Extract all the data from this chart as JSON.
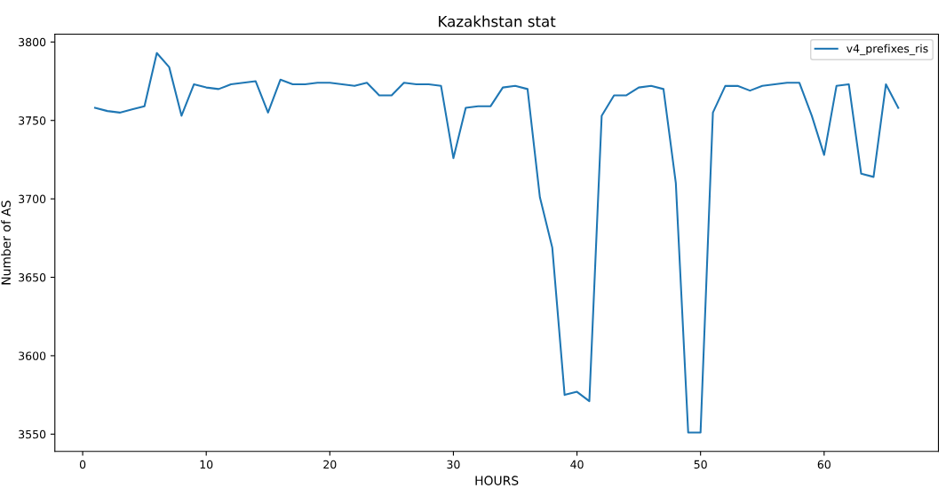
{
  "chart_data": {
    "type": "line",
    "title": "Kazakhstan stat",
    "xlabel": "HOURS",
    "ylabel": "Number of AS",
    "x": [
      1,
      2,
      3,
      4,
      5,
      6,
      7,
      8,
      9,
      10,
      11,
      12,
      13,
      14,
      15,
      16,
      17,
      18,
      19,
      20,
      21,
      22,
      23,
      24,
      25,
      26,
      27,
      28,
      29,
      30,
      31,
      32,
      33,
      34,
      35,
      36,
      37,
      38,
      39,
      40,
      41,
      42,
      43,
      44,
      45,
      46,
      47,
      48,
      49,
      50,
      51,
      52,
      53,
      54,
      55,
      56,
      57,
      58,
      59,
      60,
      61,
      62,
      63,
      64,
      65,
      66
    ],
    "series": [
      {
        "name": "v4_prefixes_ris",
        "color": "#1f77b4",
        "values": [
          3758,
          3756,
          3755,
          3757,
          3759,
          3793,
          3784,
          3753,
          3773,
          3771,
          3770,
          3773,
          3774,
          3775,
          3755,
          3776,
          3773,
          3773,
          3774,
          3774,
          3773,
          3772,
          3774,
          3766,
          3766,
          3774,
          3773,
          3773,
          3772,
          3726,
          3758,
          3759,
          3759,
          3771,
          3772,
          3770,
          3701,
          3669,
          3575,
          3577,
          3571,
          3753,
          3766,
          3766,
          3771,
          3772,
          3770,
          3710,
          3551,
          3551,
          3755,
          3772,
          3772,
          3769,
          3772,
          3773,
          3774,
          3774,
          3753,
          3728,
          3772,
          3773,
          3716,
          3714,
          3773,
          3758
        ]
      }
    ],
    "xlim": [
      -2.25,
      69.25
    ],
    "ylim": [
      3539,
      3805
    ],
    "xticks": [
      0,
      10,
      20,
      30,
      40,
      50,
      60
    ],
    "yticks": [
      3550,
      3600,
      3650,
      3700,
      3750,
      3800
    ],
    "legend": "top right",
    "grid": false,
    "marker": "none",
    "line_style": "solid"
  }
}
